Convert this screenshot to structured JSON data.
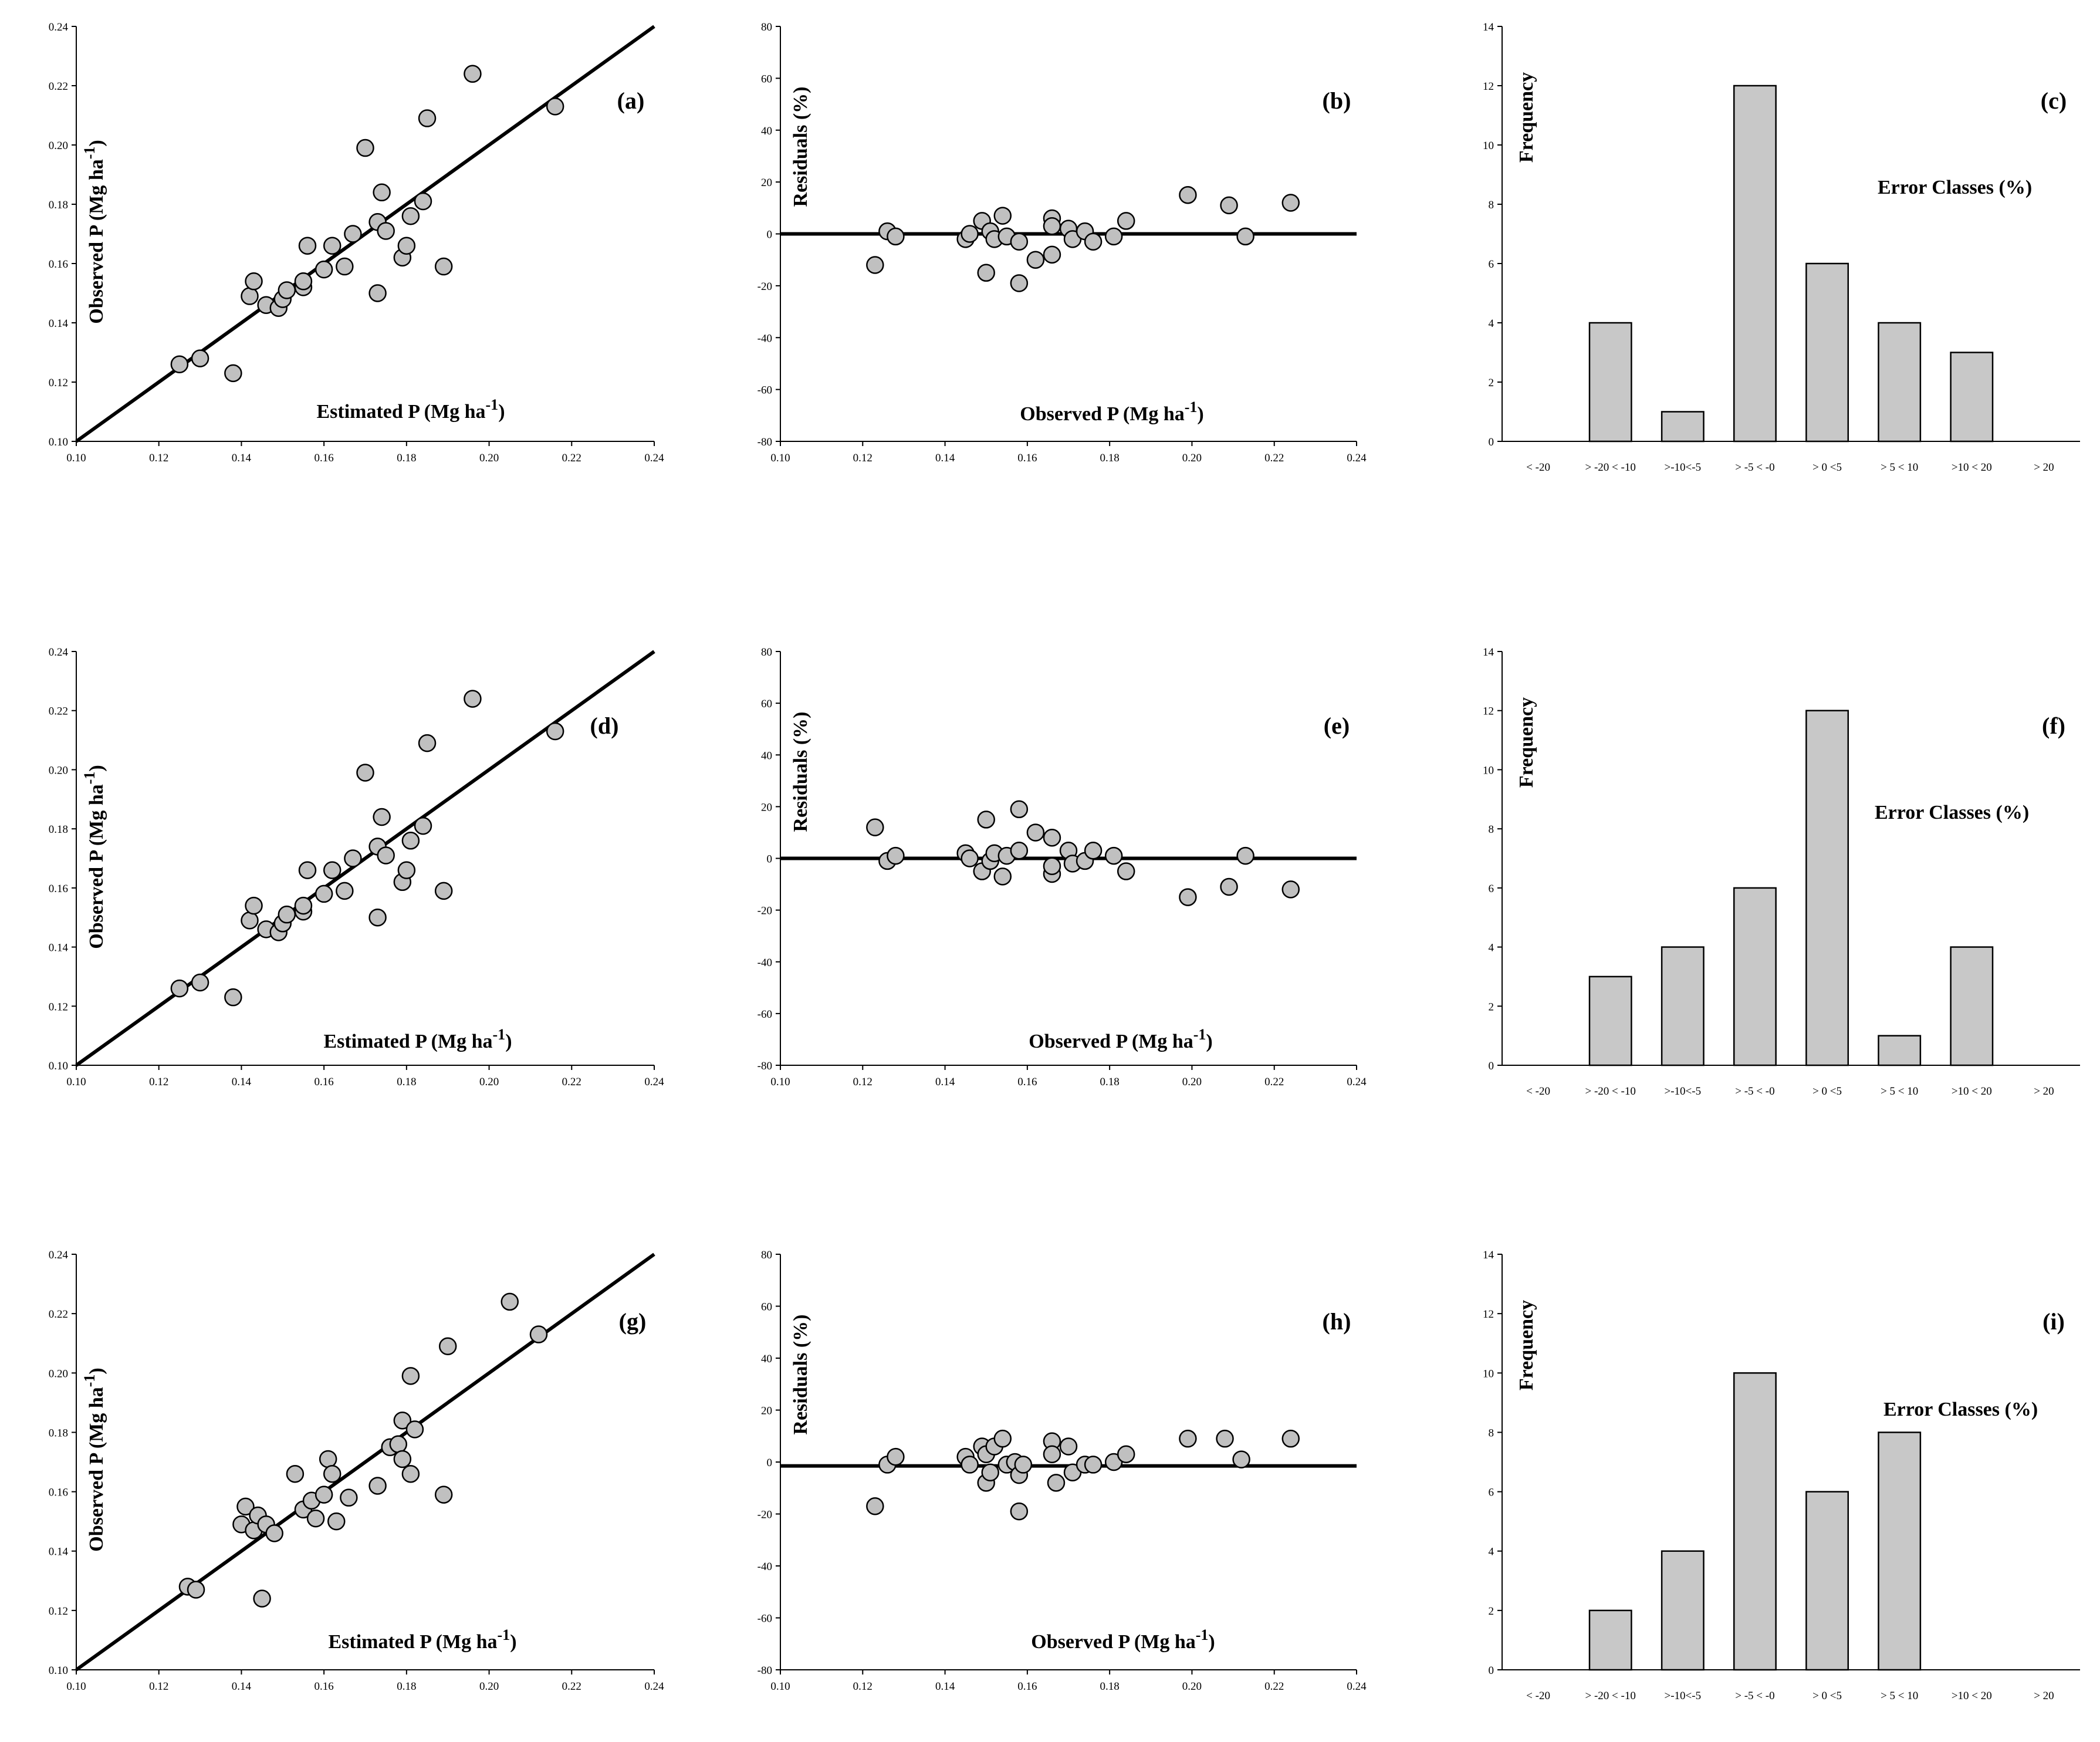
{
  "chart_data": [
    {
      "type": "scatter",
      "panel_label": "(a)",
      "xlabel": "Estimated P (Mg ha",
      "xlabel_sup": "-1",
      "xlabel_close": ")",
      "ylabel": "Observed P (Mg ha",
      "ylabel_sup": "-1",
      "ylabel_close": ")",
      "xlim": [
        0.1,
        0.24
      ],
      "ylim": [
        0.1,
        0.24
      ],
      "x_ticks": [
        "0.10",
        "0.12",
        "0.14",
        "0.16",
        "0.18",
        "0.20",
        "0.22",
        "0.24"
      ],
      "y_ticks": [
        "0.10",
        "0.12",
        "0.14",
        "0.16",
        "0.18",
        "0.20",
        "0.22",
        "0.24"
      ],
      "fit_line": [
        [
          0.1,
          0.1
        ],
        [
          0.24,
          0.24
        ]
      ],
      "points": [
        [
          0.125,
          0.126
        ],
        [
          0.13,
          0.128
        ],
        [
          0.138,
          0.123
        ],
        [
          0.142,
          0.149
        ],
        [
          0.143,
          0.154
        ],
        [
          0.146,
          0.146
        ],
        [
          0.149,
          0.145
        ],
        [
          0.15,
          0.148
        ],
        [
          0.151,
          0.151
        ],
        [
          0.155,
          0.152
        ],
        [
          0.155,
          0.154
        ],
        [
          0.156,
          0.166
        ],
        [
          0.16,
          0.158
        ],
        [
          0.162,
          0.166
        ],
        [
          0.165,
          0.159
        ],
        [
          0.167,
          0.17
        ],
        [
          0.17,
          0.199
        ],
        [
          0.173,
          0.174
        ],
        [
          0.173,
          0.15
        ],
        [
          0.174,
          0.184
        ],
        [
          0.175,
          0.171
        ],
        [
          0.179,
          0.162
        ],
        [
          0.18,
          0.166
        ],
        [
          0.181,
          0.176
        ],
        [
          0.184,
          0.181
        ],
        [
          0.185,
          0.209
        ],
        [
          0.189,
          0.159
        ],
        [
          0.196,
          0.224
        ],
        [
          0.216,
          0.213
        ]
      ]
    },
    {
      "type": "scatter",
      "panel_label": "(b)",
      "xlabel": "Observed P (Mg ha",
      "xlabel_sup": "-1",
      "xlabel_close": ")",
      "ylabel": "Residuals (%)",
      "xlim": [
        0.1,
        0.24
      ],
      "ylim": [
        -80,
        80
      ],
      "x_ticks": [
        "0.10",
        "0.12",
        "0.14",
        "0.16",
        "0.18",
        "0.20",
        "0.22",
        "0.24"
      ],
      "y_ticks": [
        "-80",
        "-60",
        "-40",
        "-20",
        "0",
        "20",
        "40",
        "60",
        "80"
      ],
      "zero_line": 0,
      "points": [
        [
          0.123,
          -12
        ],
        [
          0.126,
          1
        ],
        [
          0.128,
          -1
        ],
        [
          0.145,
          -2
        ],
        [
          0.146,
          0
        ],
        [
          0.149,
          5
        ],
        [
          0.15,
          -15
        ],
        [
          0.151,
          1
        ],
        [
          0.152,
          -2
        ],
        [
          0.154,
          7
        ],
        [
          0.155,
          -1
        ],
        [
          0.158,
          -19
        ],
        [
          0.158,
          -3
        ],
        [
          0.162,
          -10
        ],
        [
          0.166,
          6
        ],
        [
          0.166,
          -8
        ],
        [
          0.166,
          3
        ],
        [
          0.17,
          2
        ],
        [
          0.171,
          -2
        ],
        [
          0.174,
          1
        ],
        [
          0.176,
          -3
        ],
        [
          0.181,
          -1
        ],
        [
          0.184,
          5
        ],
        [
          0.199,
          15
        ],
        [
          0.209,
          11
        ],
        [
          0.213,
          -1
        ],
        [
          0.224,
          12
        ]
      ]
    },
    {
      "type": "bar",
      "panel_label": "(c)",
      "ylabel": "Frequency",
      "annotation": "Error Classes (%)",
      "categories": [
        "< -20",
        "> -20 < -10",
        ">-10<-5",
        "> -5 < -0",
        "> 0 <5",
        "> 5 < 10",
        ">10 < 20",
        "> 20"
      ],
      "values": [
        0,
        4,
        1,
        12,
        6,
        4,
        3,
        0
      ],
      "ylim": [
        0,
        14
      ],
      "y_ticks": [
        "0",
        "2",
        "4",
        "6",
        "8",
        "10",
        "12",
        "14"
      ]
    },
    {
      "type": "scatter",
      "panel_label": "(d)",
      "xlabel": "Estimated P (Mg ha",
      "xlabel_sup": "-1",
      "xlabel_close": ")",
      "ylabel": "Observed P (Mg ha",
      "ylabel_sup": "-1",
      "ylabel_close": ")",
      "xlim": [
        0.1,
        0.24
      ],
      "ylim": [
        0.1,
        0.24
      ],
      "x_ticks": [
        "0.10",
        "0.12",
        "0.14",
        "0.16",
        "0.18",
        "0.20",
        "0.22",
        "0.24"
      ],
      "y_ticks": [
        "0.10",
        "0.12",
        "0.14",
        "0.16",
        "0.18",
        "0.20",
        "0.22",
        "0.24"
      ],
      "fit_line": [
        [
          0.1,
          0.1
        ],
        [
          0.24,
          0.24
        ]
      ],
      "points": [
        [
          0.125,
          0.126
        ],
        [
          0.13,
          0.128
        ],
        [
          0.138,
          0.123
        ],
        [
          0.142,
          0.149
        ],
        [
          0.143,
          0.154
        ],
        [
          0.146,
          0.146
        ],
        [
          0.149,
          0.145
        ],
        [
          0.15,
          0.148
        ],
        [
          0.151,
          0.151
        ],
        [
          0.155,
          0.152
        ],
        [
          0.155,
          0.154
        ],
        [
          0.156,
          0.166
        ],
        [
          0.16,
          0.158
        ],
        [
          0.162,
          0.166
        ],
        [
          0.165,
          0.159
        ],
        [
          0.167,
          0.17
        ],
        [
          0.17,
          0.199
        ],
        [
          0.173,
          0.174
        ],
        [
          0.173,
          0.15
        ],
        [
          0.174,
          0.184
        ],
        [
          0.175,
          0.171
        ],
        [
          0.179,
          0.162
        ],
        [
          0.18,
          0.166
        ],
        [
          0.181,
          0.176
        ],
        [
          0.184,
          0.181
        ],
        [
          0.185,
          0.209
        ],
        [
          0.189,
          0.159
        ],
        [
          0.196,
          0.224
        ],
        [
          0.216,
          0.213
        ]
      ]
    },
    {
      "type": "scatter",
      "panel_label": "(e)",
      "xlabel": "Observed P (Mg ha",
      "xlabel_sup": "-1",
      "xlabel_close": ")",
      "ylabel": "Residuals (%)",
      "xlim": [
        0.1,
        0.24
      ],
      "ylim": [
        -80,
        80
      ],
      "x_ticks": [
        "0.10",
        "0.12",
        "0.14",
        "0.16",
        "0.18",
        "0.20",
        "0.22",
        "0.24"
      ],
      "y_ticks": [
        "-80",
        "-60",
        "-40",
        "-20",
        "0",
        "20",
        "40",
        "60",
        "80"
      ],
      "zero_line": 0,
      "points": [
        [
          0.123,
          12
        ],
        [
          0.126,
          -1
        ],
        [
          0.128,
          1
        ],
        [
          0.145,
          2
        ],
        [
          0.146,
          0
        ],
        [
          0.149,
          -5
        ],
        [
          0.15,
          15
        ],
        [
          0.151,
          -1
        ],
        [
          0.152,
          2
        ],
        [
          0.154,
          -7
        ],
        [
          0.155,
          1
        ],
        [
          0.158,
          19
        ],
        [
          0.158,
          3
        ],
        [
          0.162,
          10
        ],
        [
          0.166,
          8
        ],
        [
          0.166,
          -6
        ],
        [
          0.166,
          -3
        ],
        [
          0.17,
          3
        ],
        [
          0.171,
          -2
        ],
        [
          0.174,
          -1
        ],
        [
          0.176,
          3
        ],
        [
          0.181,
          1
        ],
        [
          0.184,
          -5
        ],
        [
          0.199,
          -15
        ],
        [
          0.209,
          -11
        ],
        [
          0.213,
          1
        ],
        [
          0.224,
          -12
        ]
      ]
    },
    {
      "type": "bar",
      "panel_label": "(f)",
      "ylabel": "Frequency",
      "annotation": "Error Classes (%)",
      "categories": [
        "< -20",
        "> -20 < -10",
        ">-10<-5",
        "> -5 < -0",
        "> 0 <5",
        "> 5 < 10",
        ">10 < 20",
        "> 20"
      ],
      "values": [
        0,
        3,
        4,
        6,
        12,
        1,
        4,
        0
      ],
      "ylim": [
        0,
        14
      ],
      "y_ticks": [
        "0",
        "2",
        "4",
        "6",
        "8",
        "10",
        "12",
        "14"
      ]
    },
    {
      "type": "scatter",
      "panel_label": "(g)",
      "xlabel": "Estimated P (Mg ha",
      "xlabel_sup": "-1",
      "xlabel_close": ")",
      "ylabel": "Observed P (Mg ha",
      "ylabel_sup": "-1",
      "ylabel_close": ")",
      "xlim": [
        0.1,
        0.24
      ],
      "ylim": [
        0.1,
        0.24
      ],
      "x_ticks": [
        "0.10",
        "0.12",
        "0.14",
        "0.16",
        "0.18",
        "0.20",
        "0.22",
        "0.24"
      ],
      "y_ticks": [
        "0.10",
        "0.12",
        "0.14",
        "0.16",
        "0.18",
        "0.20",
        "0.22",
        "0.24"
      ],
      "fit_line": [
        [
          0.1,
          0.1
        ],
        [
          0.24,
          0.24
        ]
      ],
      "points": [
        [
          0.127,
          0.128
        ],
        [
          0.129,
          0.127
        ],
        [
          0.14,
          0.149
        ],
        [
          0.141,
          0.155
        ],
        [
          0.143,
          0.147
        ],
        [
          0.144,
          0.152
        ],
        [
          0.145,
          0.124
        ],
        [
          0.146,
          0.149
        ],
        [
          0.148,
          0.146
        ],
        [
          0.153,
          0.166
        ],
        [
          0.155,
          0.154
        ],
        [
          0.157,
          0.157
        ],
        [
          0.158,
          0.151
        ],
        [
          0.16,
          0.159
        ],
        [
          0.161,
          0.171
        ],
        [
          0.162,
          0.166
        ],
        [
          0.163,
          0.15
        ],
        [
          0.166,
          0.158
        ],
        [
          0.173,
          0.162
        ],
        [
          0.176,
          0.175
        ],
        [
          0.178,
          0.176
        ],
        [
          0.179,
          0.171
        ],
        [
          0.179,
          0.184
        ],
        [
          0.181,
          0.166
        ],
        [
          0.181,
          0.199
        ],
        [
          0.182,
          0.181
        ],
        [
          0.189,
          0.159
        ],
        [
          0.19,
          0.209
        ],
        [
          0.205,
          0.224
        ],
        [
          0.212,
          0.213
        ]
      ]
    },
    {
      "type": "scatter",
      "panel_label": "(h)",
      "xlabel": "Observed P (Mg ha",
      "xlabel_sup": "-1",
      "xlabel_close": ")",
      "ylabel": "Residuals (%)",
      "xlim": [
        0.1,
        0.24
      ],
      "ylim": [
        -80,
        80
      ],
      "x_ticks": [
        "0.10",
        "0.12",
        "0.14",
        "0.16",
        "0.18",
        "0.20",
        "0.22",
        "0.24"
      ],
      "y_ticks": [
        "-80",
        "-60",
        "-40",
        "-20",
        "0",
        "20",
        "40",
        "60",
        "80"
      ],
      "zero_line": -1.5,
      "points": [
        [
          0.123,
          -17
        ],
        [
          0.126,
          -1
        ],
        [
          0.128,
          2
        ],
        [
          0.145,
          2
        ],
        [
          0.146,
          -1
        ],
        [
          0.149,
          6
        ],
        [
          0.15,
          3
        ],
        [
          0.15,
          -8
        ],
        [
          0.151,
          -4
        ],
        [
          0.152,
          6
        ],
        [
          0.154,
          9
        ],
        [
          0.155,
          -1
        ],
        [
          0.157,
          0
        ],
        [
          0.158,
          -5
        ],
        [
          0.158,
          -19
        ],
        [
          0.159,
          -1
        ],
        [
          0.166,
          8
        ],
        [
          0.166,
          3
        ],
        [
          0.167,
          -8
        ],
        [
          0.17,
          6
        ],
        [
          0.171,
          -4
        ],
        [
          0.174,
          -1
        ],
        [
          0.176,
          -1
        ],
        [
          0.181,
          0
        ],
        [
          0.184,
          3
        ],
        [
          0.199,
          9
        ],
        [
          0.208,
          9
        ],
        [
          0.212,
          1
        ],
        [
          0.224,
          9
        ]
      ]
    },
    {
      "type": "bar",
      "panel_label": "(i)",
      "ylabel": "Frequency",
      "annotation": "Error Classes (%)",
      "categories": [
        "< -20",
        "> -20 < -10",
        ">-10<-5",
        "> -5 < -0",
        "> 0 <5",
        "> 5 < 10",
        ">10 < 20",
        "> 20"
      ],
      "values": [
        0,
        2,
        4,
        10,
        6,
        8,
        0,
        0
      ],
      "ylim": [
        0,
        14
      ],
      "y_ticks": [
        "0",
        "2",
        "4",
        "6",
        "8",
        "10",
        "12",
        "14"
      ]
    }
  ]
}
